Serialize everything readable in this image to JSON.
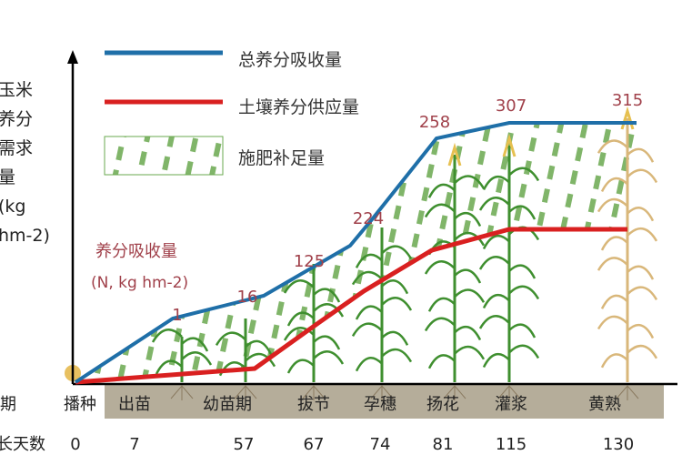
{
  "chart_data": {
    "type": "line",
    "ylabel_lines": [
      "玉米",
      "养分",
      "需求",
      "量",
      "(kg",
      "hm-2)"
    ],
    "annotation_title": "养分吸收量",
    "annotation_unit": "(N,   kg hm-2)",
    "legend": [
      {
        "name": "总养分吸收量",
        "color": "#1f6fa8",
        "kind": "line"
      },
      {
        "name": "土壤养分供应量",
        "color": "#d92020",
        "kind": "line"
      },
      {
        "name": "施肥补足量",
        "color": "#6aa84f",
        "kind": "hatch"
      }
    ],
    "legend_position": "top-left",
    "row_labels": [
      "期",
      "长天数"
    ],
    "stages": [
      "播种",
      "出苗",
      "幼苗期",
      "拔节",
      "孕穗",
      "扬花",
      "灌浆",
      "黄熟"
    ],
    "days": [
      "0",
      "7",
      "57",
      "67",
      "74",
      "81",
      "115",
      "130"
    ],
    "series": [
      {
        "name": "总养分吸收量",
        "point_labels": [
          "1",
          "16",
          "125",
          "224",
          "258",
          "307",
          "315"
        ]
      },
      {
        "name": "土壤养分供应量"
      }
    ],
    "colors": {
      "total": "#1f6fa8",
      "soil": "#d92020",
      "hatch": "#6aa84f",
      "label": "#a0404a",
      "ground": "#b5ad9a"
    }
  }
}
